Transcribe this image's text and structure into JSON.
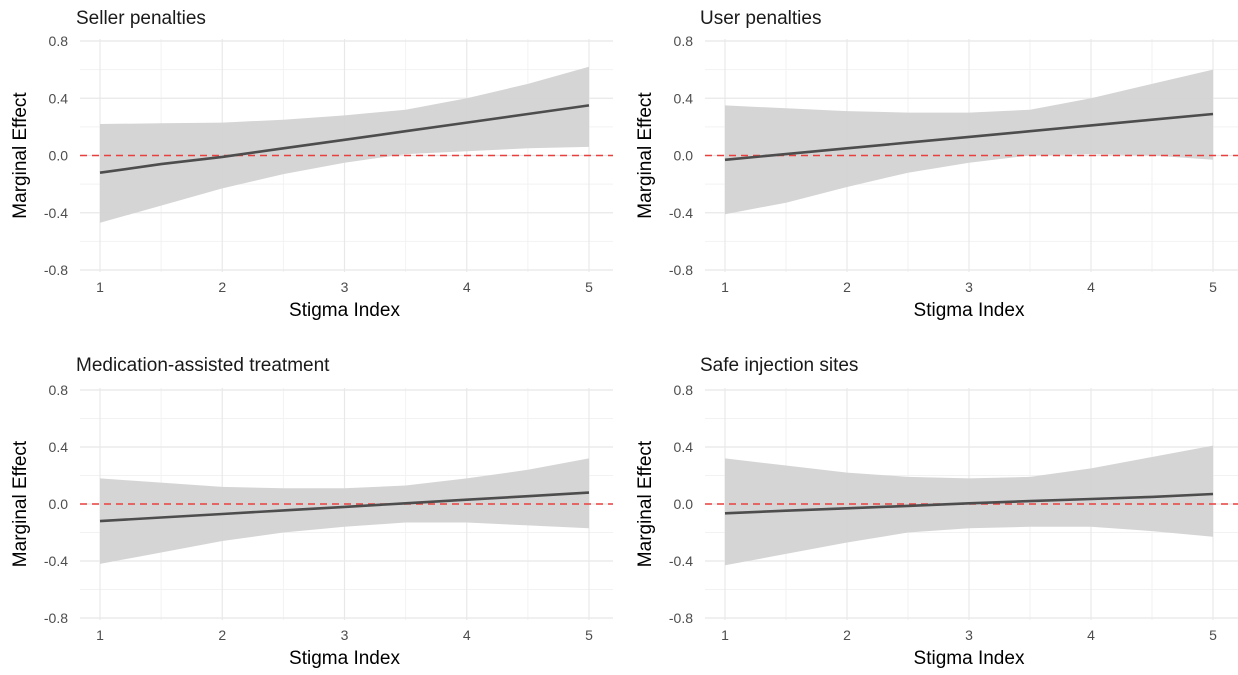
{
  "chart_data": [
    {
      "type": "line",
      "title": "Seller penalties",
      "xlabel": "Stigma Index",
      "ylabel": "Marginal Effect",
      "xlim": [
        1,
        5
      ],
      "ylim": [
        -0.8,
        0.8
      ],
      "x_ticks": [
        "1",
        "2",
        "3",
        "4",
        "5"
      ],
      "y_ticks": [
        "-0.8",
        "-0.4",
        "0.0",
        "0.4",
        "0.8"
      ],
      "reference_line": {
        "y": 0,
        "style": "dashed",
        "color": "#e8403f"
      },
      "x": [
        1,
        1.5,
        2,
        2.5,
        3,
        3.5,
        4,
        4.5,
        5
      ],
      "series": [
        {
          "type": "line",
          "color": "#4d4d4d",
          "values": [
            -0.12,
            -0.06,
            -0.01,
            0.05,
            0.11,
            0.17,
            0.23,
            0.29,
            0.35
          ]
        },
        {
          "type": "ribbon",
          "color": "#d3d3d3",
          "lower": [
            -0.47,
            -0.35,
            -0.23,
            -0.13,
            -0.05,
            0.01,
            0.03,
            0.05,
            0.06
          ],
          "upper": [
            0.22,
            0.225,
            0.23,
            0.25,
            0.28,
            0.32,
            0.4,
            0.5,
            0.62
          ]
        }
      ]
    },
    {
      "type": "line",
      "title": "User penalties",
      "xlabel": "Stigma Index",
      "ylabel": "Marginal Effect",
      "xlim": [
        1,
        5
      ],
      "ylim": [
        -0.8,
        0.8
      ],
      "x_ticks": [
        "1",
        "2",
        "3",
        "4",
        "5"
      ],
      "y_ticks": [
        "-0.8",
        "-0.4",
        "0.0",
        "0.4",
        "0.8"
      ],
      "reference_line": {
        "y": 0,
        "style": "dashed",
        "color": "#e8403f"
      },
      "x": [
        1,
        1.5,
        2,
        2.5,
        3,
        3.5,
        4,
        4.5,
        5
      ],
      "series": [
        {
          "type": "line",
          "color": "#4d4d4d",
          "values": [
            -0.03,
            0.01,
            0.05,
            0.09,
            0.13,
            0.17,
            0.21,
            0.25,
            0.29
          ]
        },
        {
          "type": "ribbon",
          "color": "#d3d3d3",
          "lower": [
            -0.41,
            -0.33,
            -0.22,
            -0.12,
            -0.05,
            0.0,
            0.01,
            0.0,
            -0.03
          ],
          "upper": [
            0.35,
            0.33,
            0.31,
            0.3,
            0.3,
            0.32,
            0.4,
            0.5,
            0.6
          ]
        }
      ]
    },
    {
      "type": "line",
      "title": "Medication-assisted treatment",
      "xlabel": "Stigma Index",
      "ylabel": "Marginal Effect",
      "xlim": [
        1,
        5
      ],
      "ylim": [
        -0.8,
        0.8
      ],
      "x_ticks": [
        "1",
        "2",
        "3",
        "4",
        "5"
      ],
      "y_ticks": [
        "-0.8",
        "-0.4",
        "0.0",
        "0.4",
        "0.8"
      ],
      "reference_line": {
        "y": 0,
        "style": "dashed",
        "color": "#e8403f"
      },
      "x": [
        1,
        1.5,
        2,
        2.5,
        3,
        3.5,
        4,
        4.5,
        5
      ],
      "series": [
        {
          "type": "line",
          "color": "#4d4d4d",
          "values": [
            -0.12,
            -0.095,
            -0.07,
            -0.045,
            -0.02,
            0.005,
            0.03,
            0.055,
            0.08
          ]
        },
        {
          "type": "ribbon",
          "color": "#d3d3d3",
          "lower": [
            -0.42,
            -0.34,
            -0.26,
            -0.2,
            -0.16,
            -0.13,
            -0.13,
            -0.15,
            -0.17
          ],
          "upper": [
            0.18,
            0.15,
            0.12,
            0.11,
            0.11,
            0.13,
            0.18,
            0.24,
            0.32
          ]
        }
      ]
    },
    {
      "type": "line",
      "title": "Safe injection sites",
      "xlabel": "Stigma Index",
      "ylabel": "Marginal Effect",
      "xlim": [
        1,
        5
      ],
      "ylim": [
        -0.8,
        0.8
      ],
      "x_ticks": [
        "1",
        "2",
        "3",
        "4",
        "5"
      ],
      "y_ticks": [
        "-0.8",
        "-0.4",
        "0.0",
        "0.4",
        "0.8"
      ],
      "reference_line": {
        "y": 0,
        "style": "dashed",
        "color": "#e8403f"
      },
      "x": [
        1,
        1.5,
        2,
        2.5,
        3,
        3.5,
        4,
        4.5,
        5
      ],
      "series": [
        {
          "type": "line",
          "color": "#4d4d4d",
          "values": [
            -0.065,
            -0.047,
            -0.03,
            -0.013,
            0.005,
            0.02,
            0.035,
            0.05,
            0.07
          ]
        },
        {
          "type": "ribbon",
          "color": "#d3d3d3",
          "lower": [
            -0.43,
            -0.35,
            -0.27,
            -0.2,
            -0.17,
            -0.16,
            -0.16,
            -0.19,
            -0.23
          ],
          "upper": [
            0.32,
            0.27,
            0.22,
            0.19,
            0.18,
            0.19,
            0.25,
            0.33,
            0.41
          ]
        }
      ]
    }
  ]
}
